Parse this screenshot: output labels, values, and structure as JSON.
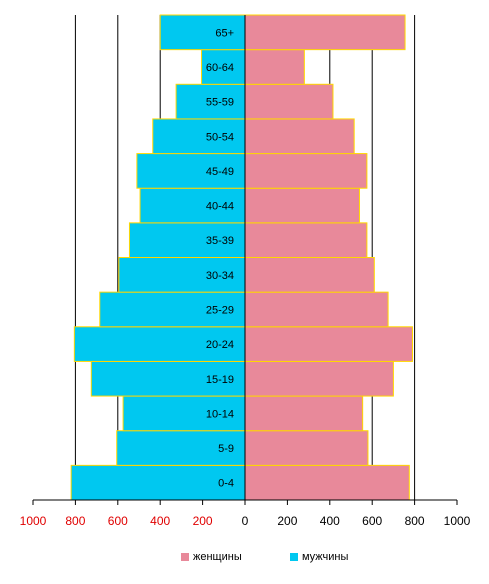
{
  "chart_data": {
    "type": "bar",
    "orientation": "horizontal",
    "subtype": "population-pyramid",
    "categories": [
      "0-4",
      "5-9",
      "10-14",
      "15-19",
      "20-24",
      "25-29",
      "30-34",
      "35-39",
      "40-44",
      "45-49",
      "50-54",
      "55-59",
      "60-64",
      "65+"
    ],
    "series": [
      {
        "name": "женщины",
        "values": [
          775,
          580,
          555,
          700,
          790,
          675,
          610,
          575,
          540,
          575,
          515,
          415,
          280,
          755
        ],
        "color": "#e8899a"
      },
      {
        "name": "мужчины",
        "values": [
          820,
          605,
          575,
          725,
          805,
          685,
          595,
          545,
          495,
          510,
          435,
          325,
          205,
          400
        ],
        "color": "#00c8f0"
      }
    ],
    "xlim": [
      -1000,
      1000
    ],
    "x_ticks": [
      1000,
      800,
      600,
      400,
      200,
      0,
      200,
      400,
      600,
      800,
      1000
    ],
    "negative_tick_color": "#e00000",
    "bar_border_color": "#ffd700",
    "grid": true,
    "legend_position": "bottom",
    "title": "",
    "xlabel": "",
    "ylabel": ""
  }
}
